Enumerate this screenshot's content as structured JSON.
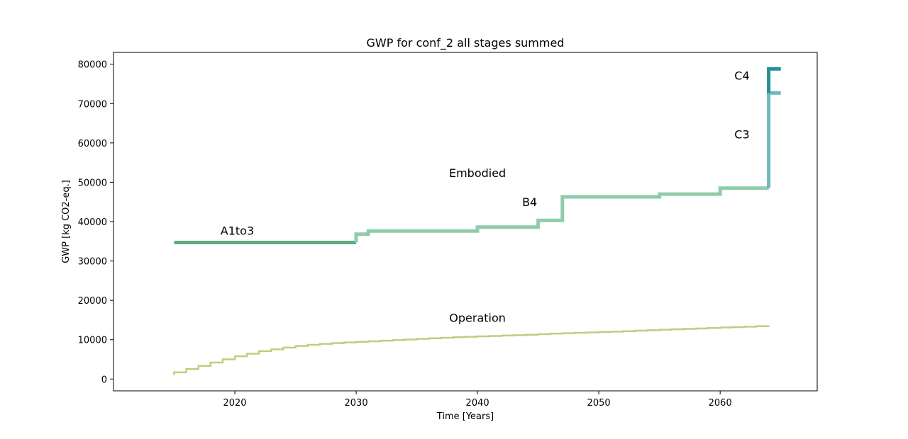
{
  "chart_data": {
    "type": "line",
    "title": "GWP for conf_2 all stages summed",
    "xlabel": "Time [Years]",
    "ylabel": "GWP [kg CO2-eq.]",
    "xlim": [
      2010,
      2068
    ],
    "ylim": [
      -3000,
      83000
    ],
    "xticks": [
      2020,
      2030,
      2040,
      2050,
      2060
    ],
    "yticks": [
      0,
      10000,
      20000,
      30000,
      40000,
      50000,
      60000,
      70000,
      80000
    ],
    "grid": false,
    "series": [
      {
        "color": "#5aae7c",
        "line_width": 5,
        "points": [
          [
            2015,
            34700
          ],
          [
            2030,
            34700
          ]
        ]
      },
      {
        "color": "#90ccaa",
        "line_width": 5,
        "points": [
          [
            2030,
            34700
          ],
          [
            2030,
            36800
          ],
          [
            2031,
            36800
          ],
          [
            2031,
            37600
          ],
          [
            2040,
            37600
          ],
          [
            2040,
            38600
          ],
          [
            2045,
            38600
          ],
          [
            2045,
            40300
          ],
          [
            2047,
            40300
          ],
          [
            2047,
            46300
          ],
          [
            2055,
            46300
          ],
          [
            2055,
            47000
          ],
          [
            2060,
            47000
          ],
          [
            2060,
            48500
          ],
          [
            2064,
            48500
          ]
        ]
      },
      {
        "color": "#6bb9bb",
        "line_width": 5,
        "points": [
          [
            2064,
            48500
          ],
          [
            2064,
            72700
          ],
          [
            2065,
            72700
          ]
        ]
      },
      {
        "color": "#239190",
        "line_width": 5,
        "points": [
          [
            2064,
            72700
          ],
          [
            2064,
            78800
          ],
          [
            2065,
            78800
          ]
        ]
      },
      {
        "color": "#c2cc7e",
        "line_width": 2.5,
        "start": [
          2015,
          1000
        ],
        "steps": [
          [
            2015,
            1700
          ],
          [
            2016,
            2550
          ],
          [
            2017,
            3350
          ],
          [
            2018,
            4200
          ],
          [
            2019,
            5000
          ],
          [
            2020,
            5800
          ],
          [
            2021,
            6450
          ],
          [
            2022,
            7100
          ],
          [
            2023,
            7550
          ],
          [
            2024,
            8000
          ],
          [
            2025,
            8400
          ],
          [
            2026,
            8700
          ],
          [
            2027,
            8950
          ],
          [
            2028,
            9150
          ],
          [
            2029,
            9300
          ],
          [
            2030,
            9450
          ],
          [
            2031,
            9600
          ],
          [
            2032,
            9750
          ],
          [
            2033,
            9900
          ],
          [
            2034,
            10050
          ],
          [
            2035,
            10200
          ],
          [
            2036,
            10350
          ],
          [
            2037,
            10500
          ],
          [
            2038,
            10620
          ],
          [
            2039,
            10750
          ],
          [
            2040,
            10850
          ],
          [
            2041,
            10950
          ],
          [
            2042,
            11050
          ],
          [
            2043,
            11150
          ],
          [
            2044,
            11250
          ],
          [
            2045,
            11400
          ],
          [
            2046,
            11550
          ],
          [
            2047,
            11650
          ],
          [
            2048,
            11750
          ],
          [
            2049,
            11850
          ],
          [
            2050,
            11950
          ],
          [
            2051,
            12050
          ],
          [
            2052,
            12150
          ],
          [
            2053,
            12300
          ],
          [
            2054,
            12400
          ],
          [
            2055,
            12550
          ],
          [
            2056,
            12650
          ],
          [
            2057,
            12750
          ],
          [
            2058,
            12850
          ],
          [
            2059,
            12950
          ],
          [
            2060,
            13100
          ],
          [
            2061,
            13200
          ],
          [
            2062,
            13300
          ],
          [
            2063,
            13450
          ],
          [
            2064,
            13600
          ]
        ],
        "end_x": 2064
      }
    ],
    "annotations": [
      {
        "text": "A1to3",
        "x": 2020.2,
        "y": 36700
      },
      {
        "text": "Embodied",
        "x": 2040,
        "y": 51300
      },
      {
        "text": "B4",
        "x": 2044.3,
        "y": 44000
      },
      {
        "text": "C3",
        "x": 2061.8,
        "y": 61100
      },
      {
        "text": "C4",
        "x": 2061.8,
        "y": 76100
      },
      {
        "text": "Operation",
        "x": 2040,
        "y": 14500
      }
    ]
  }
}
